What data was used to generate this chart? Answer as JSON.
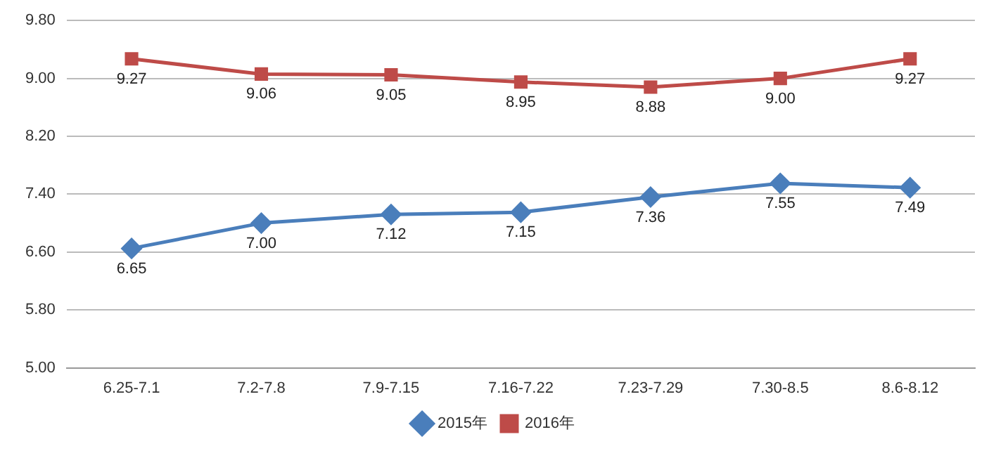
{
  "chart_data": {
    "type": "line",
    "categories": [
      "6.25-7.1",
      "7.2-7.8",
      "7.9-7.15",
      "7.16-7.22",
      "7.23-7.29",
      "7.30-8.5",
      "8.6-8.12"
    ],
    "series": [
      {
        "name": "2015年",
        "color": "#4a7ebb",
        "marker": "diamond",
        "values": [
          6.65,
          7.0,
          7.12,
          7.15,
          7.36,
          7.55,
          7.49
        ],
        "value_labels": [
          "6.65",
          "7.00",
          "7.12",
          "7.15",
          "7.36",
          "7.55",
          "7.49"
        ]
      },
      {
        "name": "2016年",
        "color": "#be4b48",
        "marker": "square",
        "values": [
          9.27,
          9.06,
          9.05,
          8.95,
          8.88,
          9.0,
          9.27
        ],
        "value_labels": [
          "9.27",
          "9.06",
          "9.05",
          "8.95",
          "8.88",
          "9.00",
          "9.27"
        ]
      }
    ],
    "ylim": [
      5,
      9.8
    ],
    "yticks": [
      {
        "value": 5,
        "label": "5.00"
      },
      {
        "value": 5.8,
        "label": "5.80"
      },
      {
        "value": 6.6,
        "label": "6.60"
      },
      {
        "value": 7.4,
        "label": "7.40"
      },
      {
        "value": 8.2,
        "label": "8.20"
      },
      {
        "value": 9,
        "label": "9.00"
      },
      {
        "value": 9.8,
        "label": "9.80"
      }
    ],
    "grid": "y",
    "legend": "bottom",
    "line_style": "solid"
  }
}
